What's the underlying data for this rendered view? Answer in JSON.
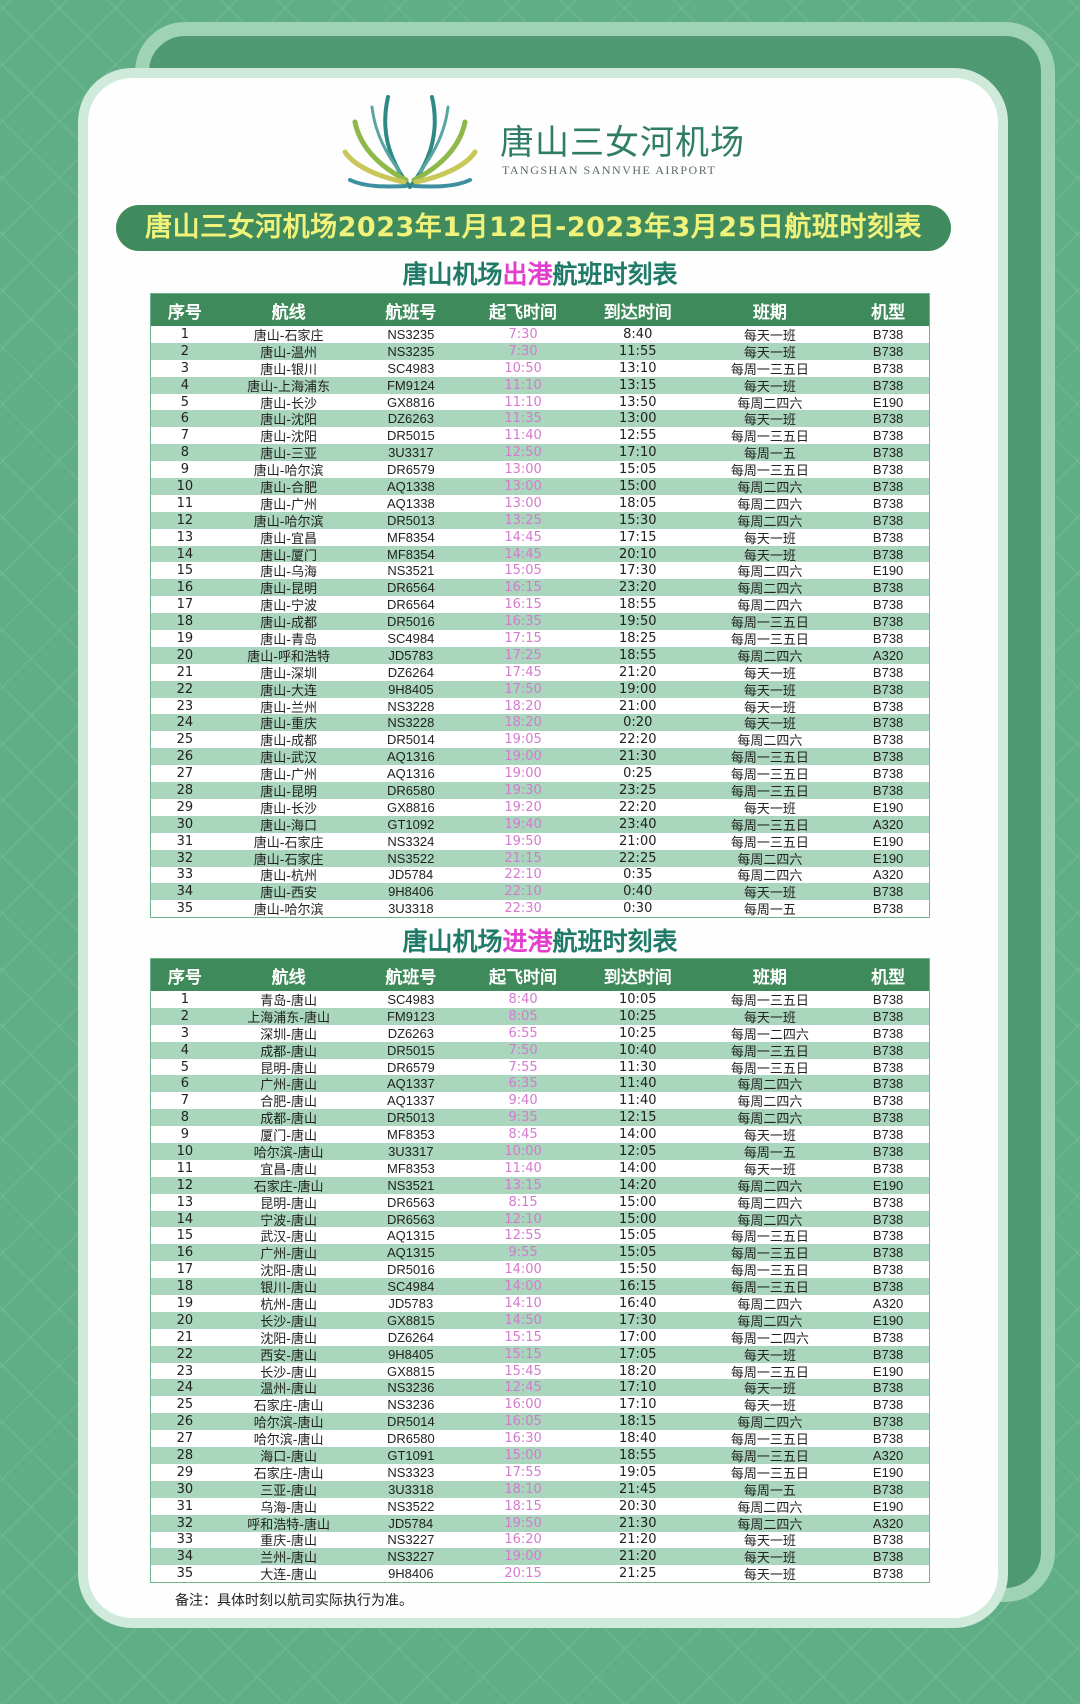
{
  "colors": {
    "background": "#5fae86",
    "banner": "#3f8b5e",
    "banner_text": "#f1f27a",
    "header": "#3e8a5a",
    "alt_row": "#a9d6bd",
    "time_text": "#d47ad0",
    "highlight": "#e23fcf"
  },
  "logo": {
    "name_cn": "唐山三女河机场",
    "name_en": "TANGSHAN SANNVHE AIRPORT"
  },
  "banner_title": "唐山三女河机场2023年1月12日-2023年3月25日航班时刻表",
  "columns": [
    "序号",
    "航线",
    "航班号",
    "起飞时间",
    "到达时间",
    "班期",
    "机型"
  ],
  "departures": {
    "title_prefix": "唐山机场",
    "title_highlight": "出港",
    "title_suffix": "航班时刻表",
    "rows": [
      [
        "1",
        "唐山-石家庄",
        "NS3235",
        "7:30",
        "8:40",
        "每天一班",
        "B738"
      ],
      [
        "2",
        "唐山-温州",
        "NS3235",
        "7:30",
        "11:55",
        "每天一班",
        "B738"
      ],
      [
        "3",
        "唐山-银川",
        "SC4983",
        "10:50",
        "13:10",
        "每周一三五日",
        "B738"
      ],
      [
        "4",
        "唐山-上海浦东",
        "FM9124",
        "11:10",
        "13:15",
        "每天一班",
        "B738"
      ],
      [
        "5",
        "唐山-长沙",
        "GX8816",
        "11:10",
        "13:50",
        "每周二四六",
        "E190"
      ],
      [
        "6",
        "唐山-沈阳",
        "DZ6263",
        "11:35",
        "13:00",
        "每天一班",
        "B738"
      ],
      [
        "7",
        "唐山-沈阳",
        "DR5015",
        "11:40",
        "12:55",
        "每周一三五日",
        "B738"
      ],
      [
        "8",
        "唐山-三亚",
        "3U3317",
        "12:50",
        "17:10",
        "每周一五",
        "B738"
      ],
      [
        "9",
        "唐山-哈尔滨",
        "DR6579",
        "13:00",
        "15:05",
        "每周一三五日",
        "B738"
      ],
      [
        "10",
        "唐山-合肥",
        "AQ1338",
        "13:00",
        "15:00",
        "每周二四六",
        "B738"
      ],
      [
        "11",
        "唐山-广州",
        "AQ1338",
        "13:00",
        "18:05",
        "每周二四六",
        "B738"
      ],
      [
        "12",
        "唐山-哈尔滨",
        "DR5013",
        "13:25",
        "15:30",
        "每周二四六",
        "B738"
      ],
      [
        "13",
        "唐山-宜昌",
        "MF8354",
        "14:45",
        "17:15",
        "每天一班",
        "B738"
      ],
      [
        "14",
        "唐山-厦门",
        "MF8354",
        "14:45",
        "20:10",
        "每天一班",
        "B738"
      ],
      [
        "15",
        "唐山-乌海",
        "NS3521",
        "15:05",
        "17:30",
        "每周二四六",
        "E190"
      ],
      [
        "16",
        "唐山-昆明",
        "DR6564",
        "16:15",
        "23:20",
        "每周二四六",
        "B738"
      ],
      [
        "17",
        "唐山-宁波",
        "DR6564",
        "16:15",
        "18:55",
        "每周二四六",
        "B738"
      ],
      [
        "18",
        "唐山-成都",
        "DR5016",
        "16:35",
        "19:50",
        "每周一三五日",
        "B738"
      ],
      [
        "19",
        "唐山-青岛",
        "SC4984",
        "17:15",
        "18:25",
        "每周一三五日",
        "B738"
      ],
      [
        "20",
        "唐山-呼和浩特",
        "JD5783",
        "17:25",
        "18:55",
        "每周二四六",
        "A320"
      ],
      [
        "21",
        "唐山-深圳",
        "DZ6264",
        "17:45",
        "21:20",
        "每天一班",
        "B738"
      ],
      [
        "22",
        "唐山-大连",
        "9H8405",
        "17:50",
        "19:00",
        "每天一班",
        "B738"
      ],
      [
        "23",
        "唐山-兰州",
        "NS3228",
        "18:20",
        "21:00",
        "每天一班",
        "B738"
      ],
      [
        "24",
        "唐山-重庆",
        "NS3228",
        "18:20",
        "0:20",
        "每天一班",
        "B738"
      ],
      [
        "25",
        "唐山-成都",
        "DR5014",
        "19:05",
        "22:20",
        "每周二四六",
        "B738"
      ],
      [
        "26",
        "唐山-武汉",
        "AQ1316",
        "19:00",
        "21:30",
        "每周一三五日",
        "B738"
      ],
      [
        "27",
        "唐山-广州",
        "AQ1316",
        "19:00",
        "0:25",
        "每周一三五日",
        "B738"
      ],
      [
        "28",
        "唐山-昆明",
        "DR6580",
        "19:30",
        "23:25",
        "每周一三五日",
        "B738"
      ],
      [
        "29",
        "唐山-长沙",
        "GX8816",
        "19:20",
        "22:20",
        "每天一班",
        "E190"
      ],
      [
        "30",
        "唐山-海口",
        "GT1092",
        "19:40",
        "23:40",
        "每周一三五日",
        "A320"
      ],
      [
        "31",
        "唐山-石家庄",
        "NS3324",
        "19:50",
        "21:00",
        "每周一三五日",
        "E190"
      ],
      [
        "32",
        "唐山-石家庄",
        "NS3522",
        "21:15",
        "22:25",
        "每周二四六",
        "E190"
      ],
      [
        "33",
        "唐山-杭州",
        "JD5784",
        "22:10",
        "0:35",
        "每周二四六",
        "A320"
      ],
      [
        "34",
        "唐山-西安",
        "9H8406",
        "22:10",
        "0:40",
        "每天一班",
        "B738"
      ],
      [
        "35",
        "唐山-哈尔滨",
        "3U3318",
        "22:30",
        "0:30",
        "每周一五",
        "B738"
      ]
    ]
  },
  "arrivals": {
    "title_prefix": "唐山机场",
    "title_highlight": "进港",
    "title_suffix": "航班时刻表",
    "rows": [
      [
        "1",
        "青岛-唐山",
        "SC4983",
        "8:40",
        "10:05",
        "每周一三五日",
        "B738"
      ],
      [
        "2",
        "上海浦东-唐山",
        "FM9123",
        "8:05",
        "10:25",
        "每天一班",
        "B738"
      ],
      [
        "3",
        "深圳-唐山",
        "DZ6263",
        "6:55",
        "10:25",
        "每周一二四六",
        "B738"
      ],
      [
        "4",
        "成都-唐山",
        "DR5015",
        "7:50",
        "10:40",
        "每周一三五日",
        "B738"
      ],
      [
        "5",
        "昆明-唐山",
        "DR6579",
        "7:55",
        "11:30",
        "每周一三五日",
        "B738"
      ],
      [
        "6",
        "广州-唐山",
        "AQ1337",
        "6:35",
        "11:40",
        "每周二四六",
        "B738"
      ],
      [
        "7",
        "合肥-唐山",
        "AQ1337",
        "9:40",
        "11:40",
        "每周二四六",
        "B738"
      ],
      [
        "8",
        "成都-唐山",
        "DR5013",
        "9:35",
        "12:15",
        "每周二四六",
        "B738"
      ],
      [
        "9",
        "厦门-唐山",
        "MF8353",
        "8:45",
        "14:00",
        "每天一班",
        "B738"
      ],
      [
        "10",
        "哈尔滨-唐山",
        "3U3317",
        "10:00",
        "12:05",
        "每周一五",
        "B738"
      ],
      [
        "11",
        "宜昌-唐山",
        "MF8353",
        "11:40",
        "14:00",
        "每天一班",
        "B738"
      ],
      [
        "12",
        "石家庄-唐山",
        "NS3521",
        "13:15",
        "14:20",
        "每周二四六",
        "E190"
      ],
      [
        "13",
        "昆明-唐山",
        "DR6563",
        "8:15",
        "15:00",
        "每周二四六",
        "B738"
      ],
      [
        "14",
        "宁波-唐山",
        "DR6563",
        "12:10",
        "15:00",
        "每周二四六",
        "B738"
      ],
      [
        "15",
        "武汉-唐山",
        "AQ1315",
        "12:55",
        "15:05",
        "每周一三五日",
        "B738"
      ],
      [
        "16",
        "广州-唐山",
        "AQ1315",
        "9:55",
        "15:05",
        "每周一三五日",
        "B738"
      ],
      [
        "17",
        "沈阳-唐山",
        "DR5016",
        "14:00",
        "15:50",
        "每周一三五日",
        "B738"
      ],
      [
        "18",
        "银川-唐山",
        "SC4984",
        "14:00",
        "16:15",
        "每周一三五日",
        "B738"
      ],
      [
        "19",
        "杭州-唐山",
        "JD5783",
        "14:10",
        "16:40",
        "每周二四六",
        "A320"
      ],
      [
        "20",
        "长沙-唐山",
        "GX8815",
        "14:50",
        "17:30",
        "每周二四六",
        "E190"
      ],
      [
        "21",
        "沈阳-唐山",
        "DZ6264",
        "15:15",
        "17:00",
        "每周一二四六",
        "B738"
      ],
      [
        "22",
        "西安-唐山",
        "9H8405",
        "15:15",
        "17:05",
        "每天一班",
        "B738"
      ],
      [
        "23",
        "长沙-唐山",
        "GX8815",
        "15:45",
        "18:20",
        "每周一三五日",
        "E190"
      ],
      [
        "24",
        "温州-唐山",
        "NS3236",
        "12:45",
        "17:10",
        "每天一班",
        "B738"
      ],
      [
        "25",
        "石家庄-唐山",
        "NS3236",
        "16:00",
        "17:10",
        "每天一班",
        "B738"
      ],
      [
        "26",
        "哈尔滨-唐山",
        "DR5014",
        "16:05",
        "18:15",
        "每周二四六",
        "B738"
      ],
      [
        "27",
        "哈尔滨-唐山",
        "DR6580",
        "16:30",
        "18:40",
        "每周一三五日",
        "B738"
      ],
      [
        "28",
        "海口-唐山",
        "GT1091",
        "15:00",
        "18:55",
        "每周一三五日",
        "A320"
      ],
      [
        "29",
        "石家庄-唐山",
        "NS3323",
        "17:55",
        "19:05",
        "每周一三五日",
        "E190"
      ],
      [
        "30",
        "三亚-唐山",
        "3U3318",
        "18:10",
        "21:45",
        "每周一五",
        "B738"
      ],
      [
        "31",
        "乌海-唐山",
        "NS3522",
        "18:15",
        "20:30",
        "每周二四六",
        "E190"
      ],
      [
        "32",
        "呼和浩特-唐山",
        "JD5784",
        "19:50",
        "21:30",
        "每周二四六",
        "A320"
      ],
      [
        "33",
        "重庆-唐山",
        "NS3227",
        "16:20",
        "21:20",
        "每天一班",
        "B738"
      ],
      [
        "34",
        "兰州-唐山",
        "NS3227",
        "19:00",
        "21:20",
        "每天一班",
        "B738"
      ],
      [
        "35",
        "大连-唐山",
        "9H8406",
        "20:15",
        "21:25",
        "每天一班",
        "B738"
      ]
    ]
  },
  "note": "备注：具体时刻以航司实际执行为准。"
}
